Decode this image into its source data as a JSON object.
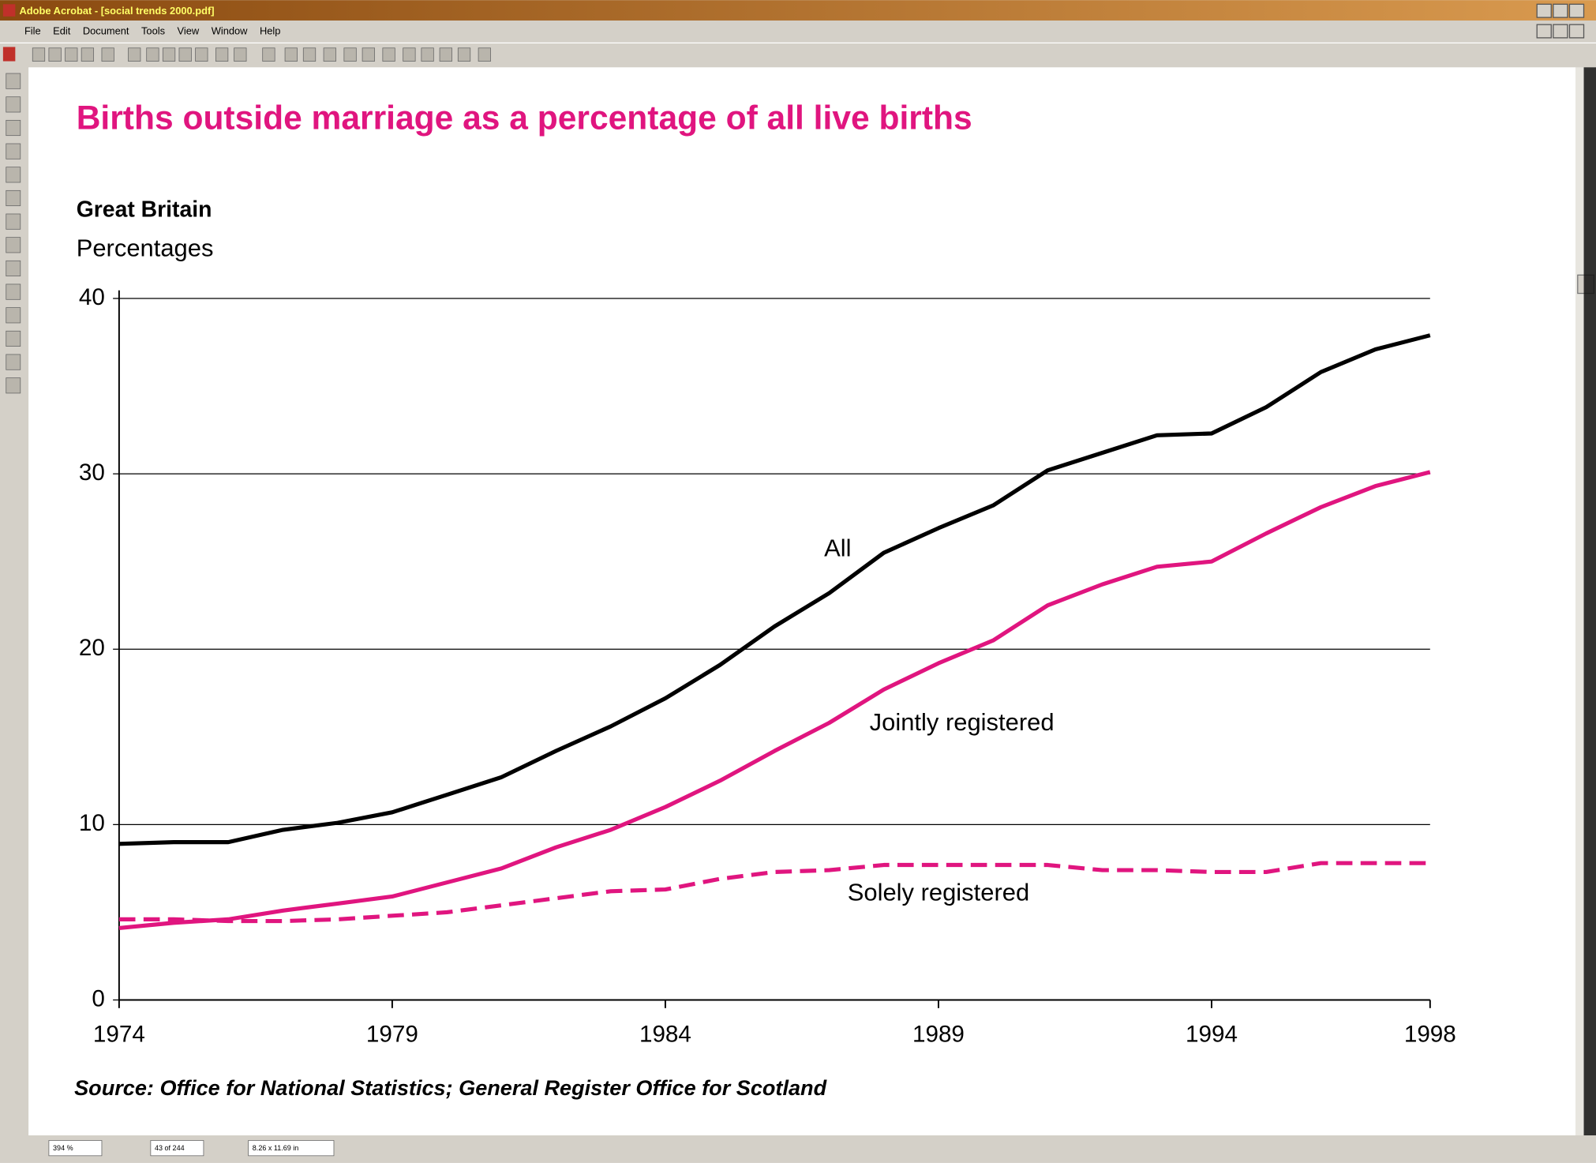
{
  "window": {
    "title": "Adobe Acrobat - [social trends 2000.pdf]",
    "menu": [
      "File",
      "Edit",
      "Document",
      "Tools",
      "View",
      "Window",
      "Help"
    ],
    "status": [
      "394 %",
      "43 of 244",
      "8.26 x 11.69 in"
    ]
  },
  "chart_data": {
    "type": "line",
    "title": "Births outside marriage as a percentage of all live births",
    "subtitle": "Great Britain",
    "y_label": "Percentages",
    "source": "Source: Office for National Statistics; General Register Office for Scotland",
    "x": [
      1974,
      1975,
      1976,
      1977,
      1978,
      1979,
      1980,
      1981,
      1982,
      1983,
      1984,
      1985,
      1986,
      1987,
      1988,
      1989,
      1990,
      1991,
      1992,
      1993,
      1994,
      1995,
      1996,
      1997,
      1998
    ],
    "xlim": [
      1974,
      1998
    ],
    "xticks": [
      1974,
      1979,
      1984,
      1989,
      1994,
      1998
    ],
    "ylim": [
      0,
      40
    ],
    "yticks": [
      0,
      10,
      20,
      30,
      40
    ],
    "grid": true,
    "series": [
      {
        "name": "All",
        "color": "#000000",
        "line_style": "solid",
        "values": [
          8.9,
          9.0,
          9.0,
          9.7,
          10.1,
          10.7,
          11.7,
          12.7,
          14.2,
          15.6,
          17.2,
          19.1,
          21.3,
          23.2,
          25.5,
          26.9,
          28.2,
          30.2,
          31.2,
          32.2,
          32.3,
          33.8,
          35.8,
          37.1,
          37.9
        ]
      },
      {
        "name": "Jointly registered",
        "color": "#e0157f",
        "line_style": "solid",
        "values": [
          4.1,
          4.4,
          4.6,
          5.1,
          5.5,
          5.9,
          6.7,
          7.5,
          8.7,
          9.7,
          11.0,
          12.5,
          14.2,
          15.8,
          17.7,
          19.2,
          20.5,
          22.5,
          23.7,
          24.7,
          25.0,
          26.6,
          28.1,
          29.3,
          30.1
        ]
      },
      {
        "name": "Solely registered",
        "color": "#e0157f",
        "line_style": "dashed",
        "values": [
          4.6,
          4.6,
          4.5,
          4.5,
          4.6,
          4.8,
          5.0,
          5.4,
          5.8,
          6.2,
          6.3,
          6.9,
          7.3,
          7.4,
          7.7,
          7.7,
          7.7,
          7.7,
          7.4,
          7.4,
          7.3,
          7.3,
          7.8,
          7.8,
          7.8
        ]
      }
    ]
  }
}
